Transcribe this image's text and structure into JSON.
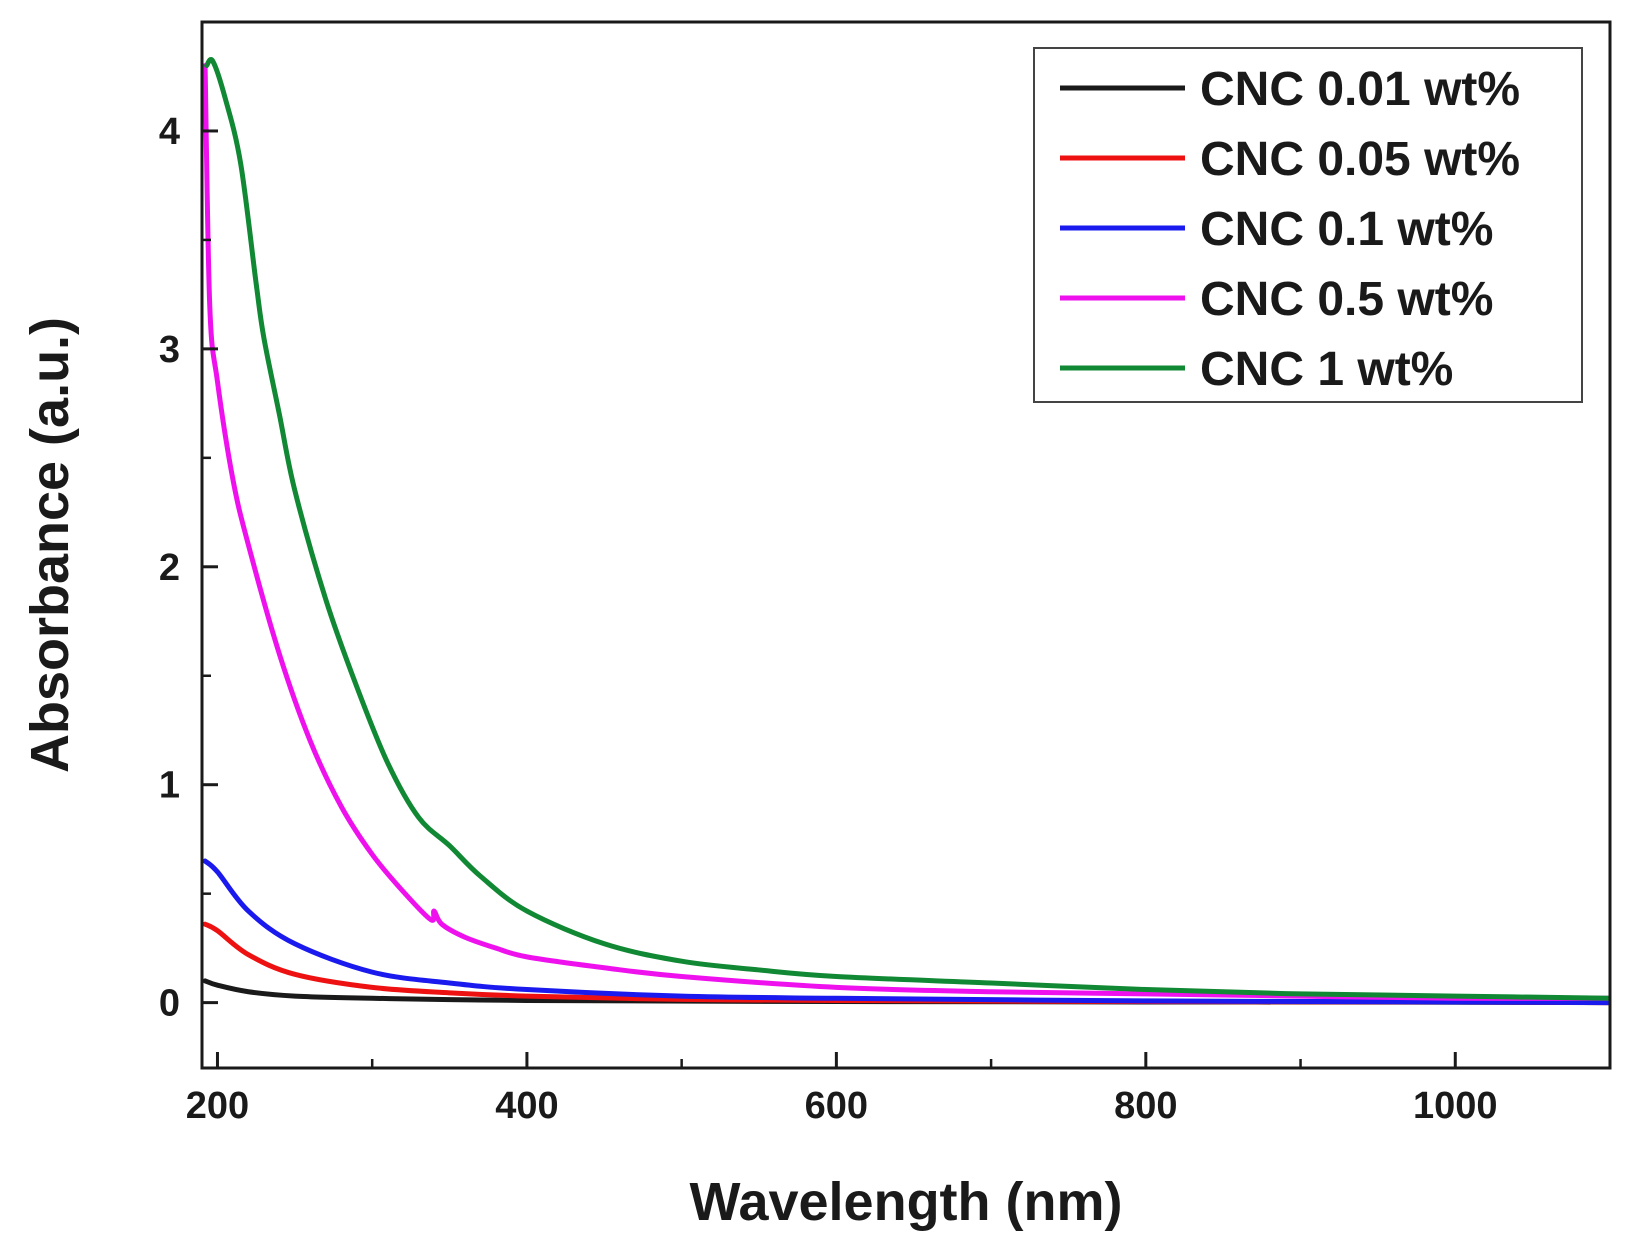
{
  "chart_data": {
    "type": "line",
    "title": "",
    "xlabel": "Wavelength (nm)",
    "ylabel": "Absorbance (a.u.)",
    "xlim": [
      190,
      1100
    ],
    "ylim": [
      -0.3,
      4.5
    ],
    "x_ticks": [
      200,
      400,
      600,
      800,
      1000
    ],
    "y_ticks": [
      0,
      1,
      2,
      3,
      4
    ],
    "grid": false,
    "legend_position": "top-right",
    "series": [
      {
        "name": "CNC 0.01 wt%",
        "color": "#1a1a1a",
        "points": [
          [
            192,
            0.1
          ],
          [
            200,
            0.08
          ],
          [
            220,
            0.05
          ],
          [
            250,
            0.03
          ],
          [
            300,
            0.02
          ],
          [
            400,
            0.01
          ],
          [
            600,
            0.005
          ],
          [
            800,
            0.003
          ],
          [
            1000,
            0.002
          ],
          [
            1100,
            0.0
          ]
        ]
      },
      {
        "name": "CNC 0.05 wt%",
        "color": "#ee1111",
        "points": [
          [
            192,
            0.36
          ],
          [
            200,
            0.33
          ],
          [
            220,
            0.22
          ],
          [
            250,
            0.13
          ],
          [
            300,
            0.07
          ],
          [
            350,
            0.045
          ],
          [
            400,
            0.03
          ],
          [
            500,
            0.015
          ],
          [
            600,
            0.01
          ],
          [
            800,
            0.005
          ],
          [
            1000,
            0.003
          ],
          [
            1100,
            0.0
          ]
        ]
      },
      {
        "name": "CNC 0.1 wt%",
        "color": "#1a1aee",
        "points": [
          [
            192,
            0.65
          ],
          [
            200,
            0.6
          ],
          [
            220,
            0.42
          ],
          [
            250,
            0.27
          ],
          [
            300,
            0.14
          ],
          [
            350,
            0.09
          ],
          [
            400,
            0.06
          ],
          [
            500,
            0.03
          ],
          [
            600,
            0.02
          ],
          [
            800,
            0.008
          ],
          [
            1000,
            0.003
          ],
          [
            1100,
            0.0
          ]
        ]
      },
      {
        "name": "CNC 0.5 wt%",
        "color": "#ee11ee",
        "points": [
          [
            192,
            4.3
          ],
          [
            195,
            3.2
          ],
          [
            200,
            2.85
          ],
          [
            210,
            2.4
          ],
          [
            220,
            2.1
          ],
          [
            240,
            1.6
          ],
          [
            260,
            1.2
          ],
          [
            280,
            0.9
          ],
          [
            300,
            0.68
          ],
          [
            320,
            0.51
          ],
          [
            338,
            0.38
          ],
          [
            340,
            0.42
          ],
          [
            345,
            0.36
          ],
          [
            360,
            0.3
          ],
          [
            380,
            0.25
          ],
          [
            400,
            0.21
          ],
          [
            450,
            0.16
          ],
          [
            500,
            0.12
          ],
          [
            600,
            0.07
          ],
          [
            700,
            0.05
          ],
          [
            800,
            0.04
          ],
          [
            900,
            0.03
          ],
          [
            1000,
            0.02
          ],
          [
            1100,
            0.02
          ]
        ]
      },
      {
        "name": "CNC 1 wt%",
        "color": "#118833",
        "points": [
          [
            193,
            4.3
          ],
          [
            197,
            4.32
          ],
          [
            205,
            4.15
          ],
          [
            215,
            3.85
          ],
          [
            225,
            3.3
          ],
          [
            230,
            3.05
          ],
          [
            240,
            2.7
          ],
          [
            250,
            2.35
          ],
          [
            270,
            1.85
          ],
          [
            290,
            1.45
          ],
          [
            310,
            1.1
          ],
          [
            330,
            0.85
          ],
          [
            350,
            0.72
          ],
          [
            370,
            0.58
          ],
          [
            400,
            0.42
          ],
          [
            450,
            0.27
          ],
          [
            500,
            0.19
          ],
          [
            550,
            0.15
          ],
          [
            600,
            0.12
          ],
          [
            700,
            0.09
          ],
          [
            800,
            0.06
          ],
          [
            900,
            0.04
          ],
          [
            1000,
            0.03
          ],
          [
            1100,
            0.02
          ]
        ]
      }
    ]
  }
}
